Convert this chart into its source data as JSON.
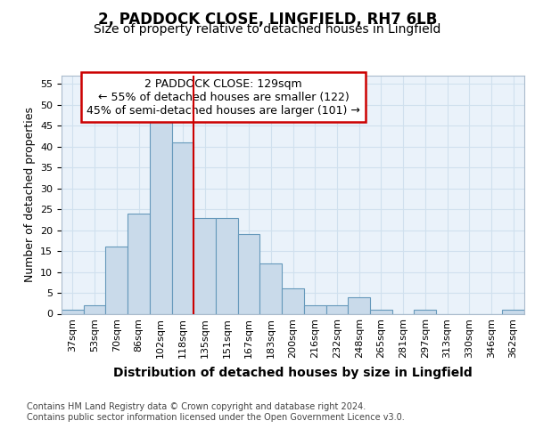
{
  "title1": "2, PADDOCK CLOSE, LINGFIELD, RH7 6LB",
  "title2": "Size of property relative to detached houses in Lingfield",
  "xlabel": "Distribution of detached houses by size in Lingfield",
  "ylabel": "Number of detached properties",
  "categories": [
    "37sqm",
    "53sqm",
    "70sqm",
    "86sqm",
    "102sqm",
    "118sqm",
    "135sqm",
    "151sqm",
    "167sqm",
    "183sqm",
    "200sqm",
    "216sqm",
    "232sqm",
    "248sqm",
    "265sqm",
    "281sqm",
    "297sqm",
    "313sqm",
    "330sqm",
    "346sqm",
    "362sqm"
  ],
  "values": [
    1,
    2,
    16,
    24,
    46,
    41,
    23,
    23,
    19,
    12,
    6,
    2,
    2,
    4,
    1,
    0,
    1,
    0,
    0,
    0,
    1
  ],
  "bar_color": "#c9daea",
  "bar_edge_color": "#6699bb",
  "grid_color": "#d0e0ee",
  "bg_color": "#eaf2fa",
  "vline_color": "#cc0000",
  "vline_x_index": 5,
  "annotation_line1": "2 PADDOCK CLOSE: 129sqm",
  "annotation_line2": "← 55% of detached houses are smaller (122)",
  "annotation_line3": "45% of semi-detached houses are larger (101) →",
  "annotation_box_color": "#cc0000",
  "annotation_fill": "white",
  "ylim": [
    0,
    57
  ],
  "yticks": [
    0,
    5,
    10,
    15,
    20,
    25,
    30,
    35,
    40,
    45,
    50,
    55
  ],
  "footnote": "Contains HM Land Registry data © Crown copyright and database right 2024.\nContains public sector information licensed under the Open Government Licence v3.0.",
  "title_fontsize": 12,
  "subtitle_fontsize": 10,
  "xlabel_fontsize": 10,
  "ylabel_fontsize": 9,
  "tick_fontsize": 8,
  "annot_fontsize": 9,
  "footnote_fontsize": 7
}
